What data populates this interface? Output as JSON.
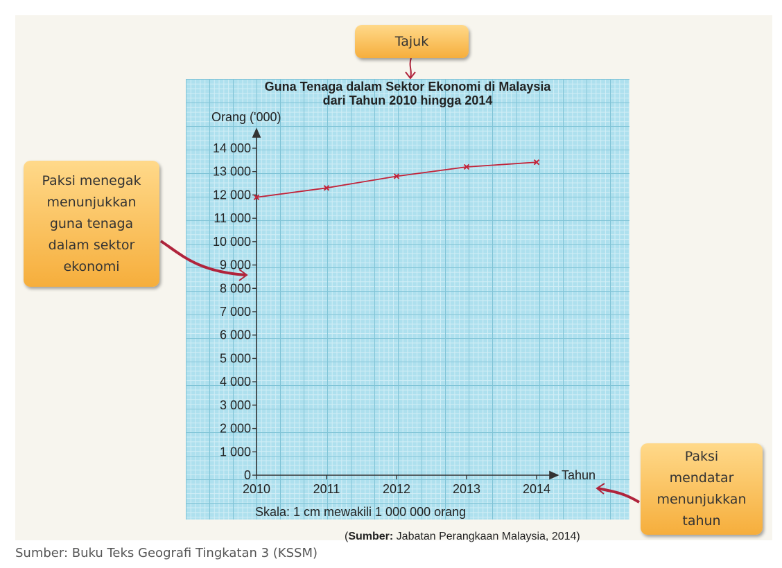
{
  "chart_data": {
    "type": "line",
    "title_line1": "Guna Tenaga dalam Sektor Ekonomi di Malaysia",
    "title_line2": "dari Tahun 2010 hingga 2014",
    "ylabel": "Orang ('000)",
    "xlabel": "Tahun",
    "categories": [
      "2010",
      "2011",
      "2012",
      "2013",
      "2014"
    ],
    "x_values": [
      2010,
      2011,
      2012,
      2013,
      2014
    ],
    "values": [
      11900,
      12300,
      12800,
      13200,
      13400
    ],
    "ylim": [
      0,
      14000
    ],
    "y_ticks": [
      0,
      1000,
      2000,
      3000,
      4000,
      5000,
      6000,
      7000,
      8000,
      9000,
      10000,
      11000,
      12000,
      13000,
      14000
    ],
    "y_tick_labels": [
      "0",
      "1 000",
      "2 000",
      "3 000",
      "4 000",
      "5 000",
      "6 000",
      "7 000",
      "8 000",
      "9 000",
      "10 000",
      "11 000",
      "12 000",
      "13 000",
      "14 000"
    ],
    "scale_note": "Skala: 1 cm mewakili 1 000 000 orang",
    "source_bold": "Sumber:",
    "source_text": " Jabatan Perangkaan Malaysia, 2014)",
    "source_open": "(",
    "line_color": "#c2243a"
  },
  "callouts": {
    "title": "Tajuk",
    "y_axis_lines": [
      "Paksi menegak",
      "menunjukkan",
      "guna tenaga",
      "dalam sektor",
      "ekonomi"
    ],
    "x_axis_lines": [
      "Paksi",
      "mendatar",
      "menunjukkan",
      "tahun"
    ]
  },
  "caption": "Sumber: Buku Teks Geografi Tingkatan 3 (KSSM)",
  "colors": {
    "grid_bg": "#aee0ee",
    "callout": "#f6ae3c",
    "arrow": "#b0243c"
  }
}
